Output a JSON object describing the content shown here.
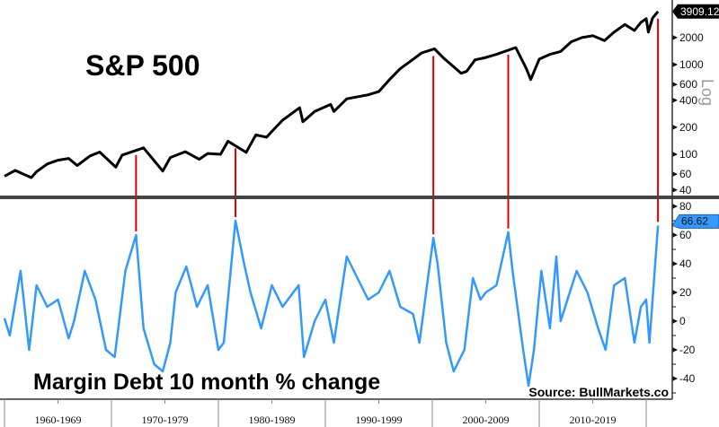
{
  "chart_data": [
    {
      "type": "line",
      "title": "S&P 500",
      "scale": "log",
      "axis_label": "Log",
      "yticks": [
        40,
        60,
        100,
        200,
        400,
        600,
        1000,
        2000
      ],
      "last_value_label": "3909.12",
      "color": "#000000",
      "x": [
        1960,
        1961,
        1962.5,
        1963,
        1964,
        1965,
        1966,
        1966.8,
        1968,
        1968.9,
        1970.4,
        1971,
        1973,
        1974.8,
        1975.5,
        1976.9,
        1978.2,
        1979,
        1980.2,
        1980.9,
        1982.6,
        1983.5,
        1984.5,
        1985,
        1986,
        1987.6,
        1987.9,
        1989,
        1990.5,
        1990.8,
        1992,
        1994,
        1995,
        1996,
        1997,
        1998,
        1999,
        2000.2,
        2001,
        2002.7,
        2003.2,
        2004,
        2005,
        2006,
        2007.8,
        2008.8,
        2009.2,
        2010,
        2011,
        2012,
        2013,
        2014,
        2015,
        2016.1,
        2017,
        2018,
        2018.9,
        2019.5,
        2020,
        2020.2,
        2020.6,
        2021.1
      ],
      "values": [
        57,
        66,
        55,
        64,
        78,
        86,
        90,
        75,
        96,
        106,
        72,
        98,
        118,
        65,
        92,
        107,
        88,
        102,
        100,
        140,
        105,
        165,
        155,
        180,
        240,
        330,
        230,
        300,
        360,
        300,
        415,
        460,
        500,
        680,
        900,
        1100,
        1350,
        1500,
        1200,
        800,
        840,
        1130,
        1200,
        1300,
        1550,
        900,
        680,
        1150,
        1300,
        1400,
        1800,
        2000,
        2100,
        1850,
        2300,
        2800,
        2400,
        2950,
        3250,
        2300,
        3300,
        3909.12
      ]
    },
    {
      "type": "line",
      "title": "Margin Debt 10 month % change",
      "yticks": [
        -40,
        -20,
        0,
        20,
        40,
        60,
        80
      ],
      "last_value_label": "66.62",
      "color": "#3399ff",
      "x": [
        1960,
        1960.5,
        1961.5,
        1962.3,
        1963,
        1964,
        1965,
        1966,
        1966.5,
        1967.5,
        1968.5,
        1969.5,
        1970.3,
        1971.3,
        1972.3,
        1973,
        1974,
        1974.8,
        1975.5,
        1976,
        1977,
        1978,
        1979,
        1980,
        1980.5,
        1981.6,
        1982.4,
        1983,
        1984,
        1985,
        1986,
        1987.5,
        1988,
        1989,
        1990,
        1990.8,
        1992,
        1993,
        1994,
        1995,
        1996,
        1997,
        1998.2,
        1998.8,
        1999.5,
        2000.1,
        2000.5,
        2001.3,
        2002,
        2003,
        2003.8,
        2004.5,
        2005,
        2006,
        2007.1,
        2007.5,
        2008.5,
        2009,
        2009.5,
        2010.2,
        2011,
        2011.6,
        2012,
        2013.5,
        2014.5,
        2015.5,
        2016.2,
        2017,
        2018,
        2018.9,
        2019.5,
        2020,
        2020.3,
        2020.6,
        2021.1
      ],
      "values": [
        2,
        -10,
        35,
        -20,
        25,
        10,
        15,
        -12,
        0,
        35,
        15,
        -20,
        -25,
        35,
        60,
        -5,
        -30,
        -35,
        -15,
        20,
        38,
        10,
        25,
        -20,
        -15,
        70,
        40,
        20,
        -5,
        25,
        10,
        25,
        -25,
        0,
        15,
        -15,
        45,
        30,
        15,
        20,
        35,
        10,
        5,
        -15,
        25,
        58,
        40,
        -15,
        -35,
        -20,
        30,
        15,
        20,
        25,
        62,
        35,
        -20,
        -45,
        -20,
        35,
        -5,
        45,
        0,
        35,
        20,
        -5,
        -20,
        25,
        30,
        -15,
        10,
        15,
        -15,
        15,
        66.62
      ]
    }
  ],
  "x_axis": {
    "categories": [
      "1960-1969",
      "1970-1979",
      "1980-1989",
      "1990-1999",
      "2000-2009",
      "2010-2019"
    ]
  },
  "peak_markers": [
    1972.3,
    1981.6,
    2000.1,
    2007.1,
    2021.1
  ],
  "marker_color": "#e00000",
  "source": "Source: BullMarkets.co"
}
